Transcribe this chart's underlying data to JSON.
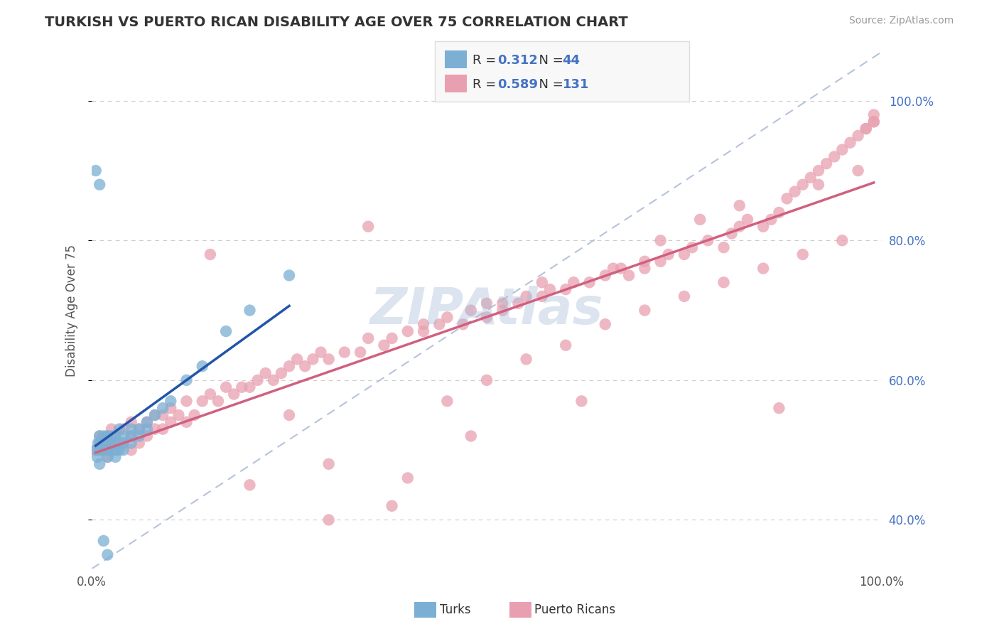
{
  "title": "TURKISH VS PUERTO RICAN DISABILITY AGE OVER 75 CORRELATION CHART",
  "source": "Source: ZipAtlas.com",
  "ylabel": "Disability Age Over 75",
  "xlim": [
    0,
    1
  ],
  "ylim": [
    0.33,
    1.07
  ],
  "yticks": [
    0.4,
    0.6,
    0.8,
    1.0
  ],
  "ytick_labels": [
    "40.0%",
    "60.0%",
    "80.0%",
    "100.0%"
  ],
  "turks_R": 0.312,
  "turks_N": 44,
  "puerto_R": 0.589,
  "puerto_N": 131,
  "blue_color": "#7bafd4",
  "pink_color": "#e8a0b0",
  "blue_line_color": "#2255aa",
  "pink_line_color": "#d06080",
  "ref_line_color": "#b0bcd8",
  "watermark": "ZIPAtlas",
  "watermark_color": "#a8bcd8",
  "ytick_color": "#4472c4",
  "legend_value_color": "#4472c4",
  "legend_bg": "#f8f8f8",
  "legend_border": "#dddddd",
  "turks_x": [
    0.005,
    0.007,
    0.008,
    0.01,
    0.01,
    0.01,
    0.01,
    0.015,
    0.015,
    0.02,
    0.02,
    0.02,
    0.02,
    0.025,
    0.025,
    0.025,
    0.03,
    0.03,
    0.03,
    0.03,
    0.035,
    0.035,
    0.04,
    0.04,
    0.04,
    0.05,
    0.05,
    0.05,
    0.06,
    0.06,
    0.07,
    0.07,
    0.08,
    0.09,
    0.1,
    0.12,
    0.14,
    0.17,
    0.2,
    0.25,
    0.005,
    0.01,
    0.015,
    0.02
  ],
  "turks_y": [
    0.5,
    0.49,
    0.51,
    0.5,
    0.51,
    0.52,
    0.48,
    0.5,
    0.52,
    0.49,
    0.51,
    0.52,
    0.5,
    0.5,
    0.51,
    0.52,
    0.49,
    0.5,
    0.51,
    0.52,
    0.5,
    0.53,
    0.51,
    0.52,
    0.5,
    0.51,
    0.52,
    0.53,
    0.52,
    0.53,
    0.53,
    0.54,
    0.55,
    0.56,
    0.57,
    0.6,
    0.62,
    0.67,
    0.7,
    0.75,
    0.9,
    0.88,
    0.37,
    0.35
  ],
  "puerto_x": [
    0.005,
    0.01,
    0.01,
    0.015,
    0.02,
    0.02,
    0.02,
    0.025,
    0.025,
    0.03,
    0.03,
    0.04,
    0.04,
    0.05,
    0.05,
    0.05,
    0.06,
    0.06,
    0.07,
    0.07,
    0.08,
    0.08,
    0.09,
    0.09,
    0.1,
    0.1,
    0.11,
    0.12,
    0.12,
    0.13,
    0.14,
    0.15,
    0.16,
    0.17,
    0.18,
    0.19,
    0.2,
    0.21,
    0.22,
    0.23,
    0.24,
    0.25,
    0.26,
    0.27,
    0.28,
    0.29,
    0.3,
    0.32,
    0.34,
    0.35,
    0.37,
    0.38,
    0.4,
    0.42,
    0.44,
    0.45,
    0.47,
    0.48,
    0.5,
    0.5,
    0.52,
    0.54,
    0.55,
    0.57,
    0.58,
    0.6,
    0.61,
    0.63,
    0.65,
    0.66,
    0.68,
    0.7,
    0.7,
    0.72,
    0.73,
    0.75,
    0.76,
    0.78,
    0.8,
    0.81,
    0.82,
    0.83,
    0.85,
    0.86,
    0.87,
    0.88,
    0.89,
    0.9,
    0.91,
    0.92,
    0.93,
    0.94,
    0.95,
    0.96,
    0.97,
    0.98,
    0.98,
    0.99,
    0.99,
    0.99,
    0.15,
    0.2,
    0.25,
    0.3,
    0.35,
    0.38,
    0.4,
    0.42,
    0.45,
    0.48,
    0.5,
    0.52,
    0.55,
    0.57,
    0.6,
    0.62,
    0.65,
    0.67,
    0.7,
    0.72,
    0.75,
    0.77,
    0.8,
    0.82,
    0.85,
    0.87,
    0.9,
    0.92,
    0.95,
    0.97,
    0.3
  ],
  "puerto_y": [
    0.5,
    0.5,
    0.52,
    0.51,
    0.5,
    0.52,
    0.49,
    0.51,
    0.53,
    0.5,
    0.52,
    0.51,
    0.53,
    0.5,
    0.52,
    0.54,
    0.51,
    0.53,
    0.52,
    0.54,
    0.53,
    0.55,
    0.53,
    0.55,
    0.54,
    0.56,
    0.55,
    0.54,
    0.57,
    0.55,
    0.57,
    0.58,
    0.57,
    0.59,
    0.58,
    0.59,
    0.59,
    0.6,
    0.61,
    0.6,
    0.61,
    0.62,
    0.63,
    0.62,
    0.63,
    0.64,
    0.63,
    0.64,
    0.64,
    0.66,
    0.65,
    0.66,
    0.67,
    0.67,
    0.68,
    0.69,
    0.68,
    0.7,
    0.69,
    0.71,
    0.7,
    0.71,
    0.72,
    0.72,
    0.73,
    0.73,
    0.74,
    0.74,
    0.75,
    0.76,
    0.75,
    0.76,
    0.77,
    0.77,
    0.78,
    0.78,
    0.79,
    0.8,
    0.79,
    0.81,
    0.82,
    0.83,
    0.82,
    0.83,
    0.84,
    0.86,
    0.87,
    0.88,
    0.89,
    0.9,
    0.91,
    0.92,
    0.93,
    0.94,
    0.95,
    0.96,
    0.96,
    0.97,
    0.97,
    0.98,
    0.78,
    0.45,
    0.55,
    0.48,
    0.82,
    0.42,
    0.46,
    0.68,
    0.57,
    0.52,
    0.6,
    0.71,
    0.63,
    0.74,
    0.65,
    0.57,
    0.68,
    0.76,
    0.7,
    0.8,
    0.72,
    0.83,
    0.74,
    0.85,
    0.76,
    0.56,
    0.78,
    0.88,
    0.8,
    0.9,
    0.4
  ]
}
